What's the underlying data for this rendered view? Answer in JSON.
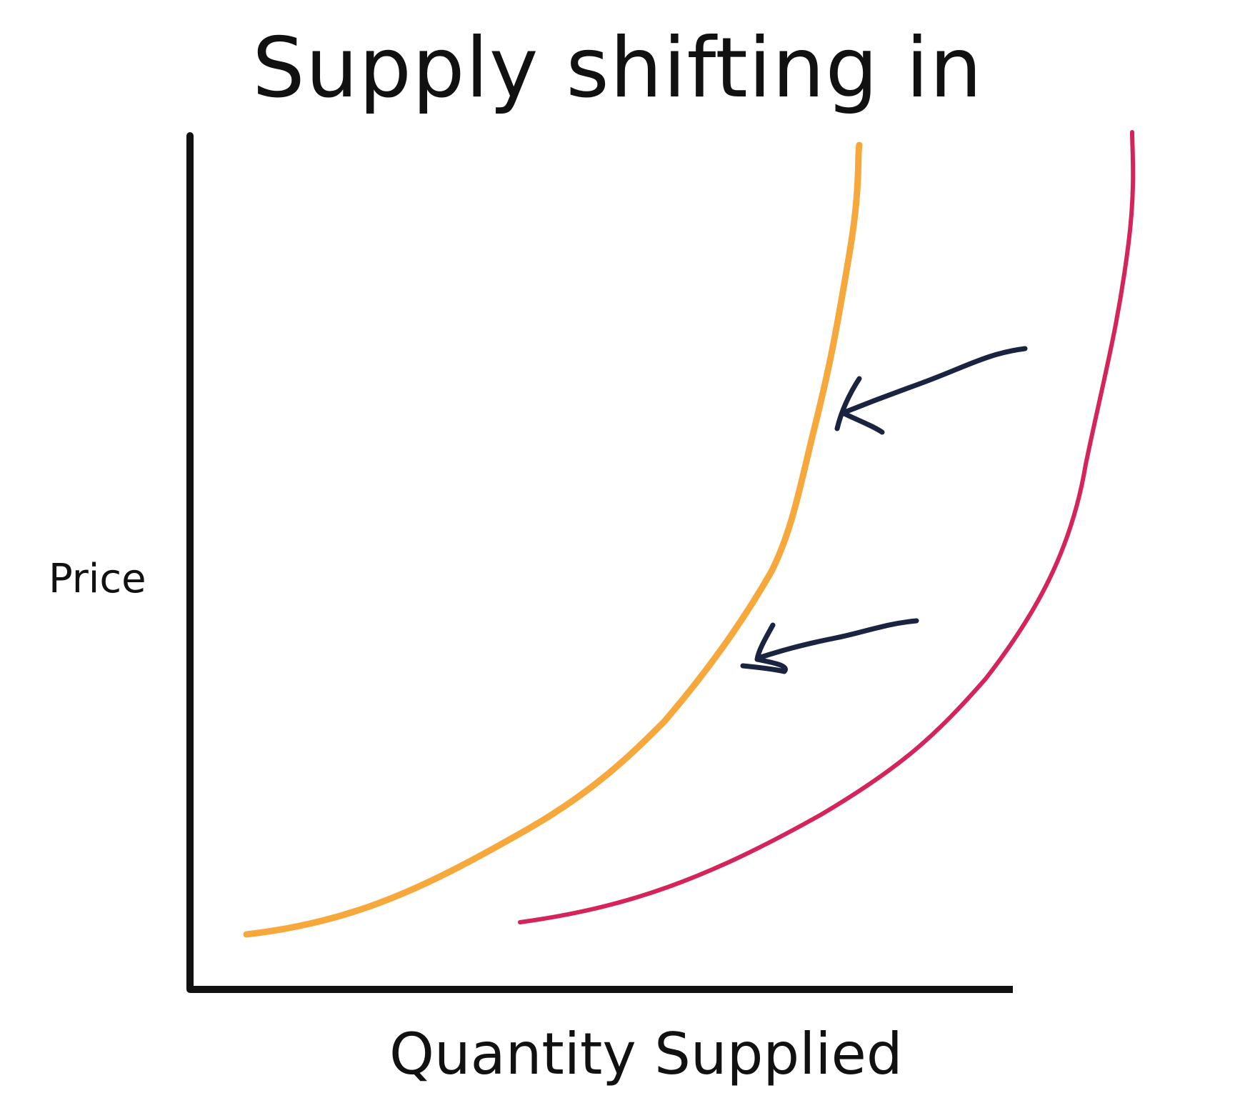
{
  "diagram": {
    "title": "Supply shifting in",
    "y_axis_label": "Price",
    "x_axis_label": "Quantity Supplied",
    "colors": {
      "axis": "#111111",
      "original_supply": "#d4245a",
      "new_supply": "#f7a83c",
      "arrows": "#1a2340"
    },
    "arrows": [
      {
        "icon": "left-arrow-icon",
        "direction": "leftward (shift in)"
      },
      {
        "icon": "left-arrow-icon",
        "direction": "leftward (shift in)"
      }
    ]
  }
}
